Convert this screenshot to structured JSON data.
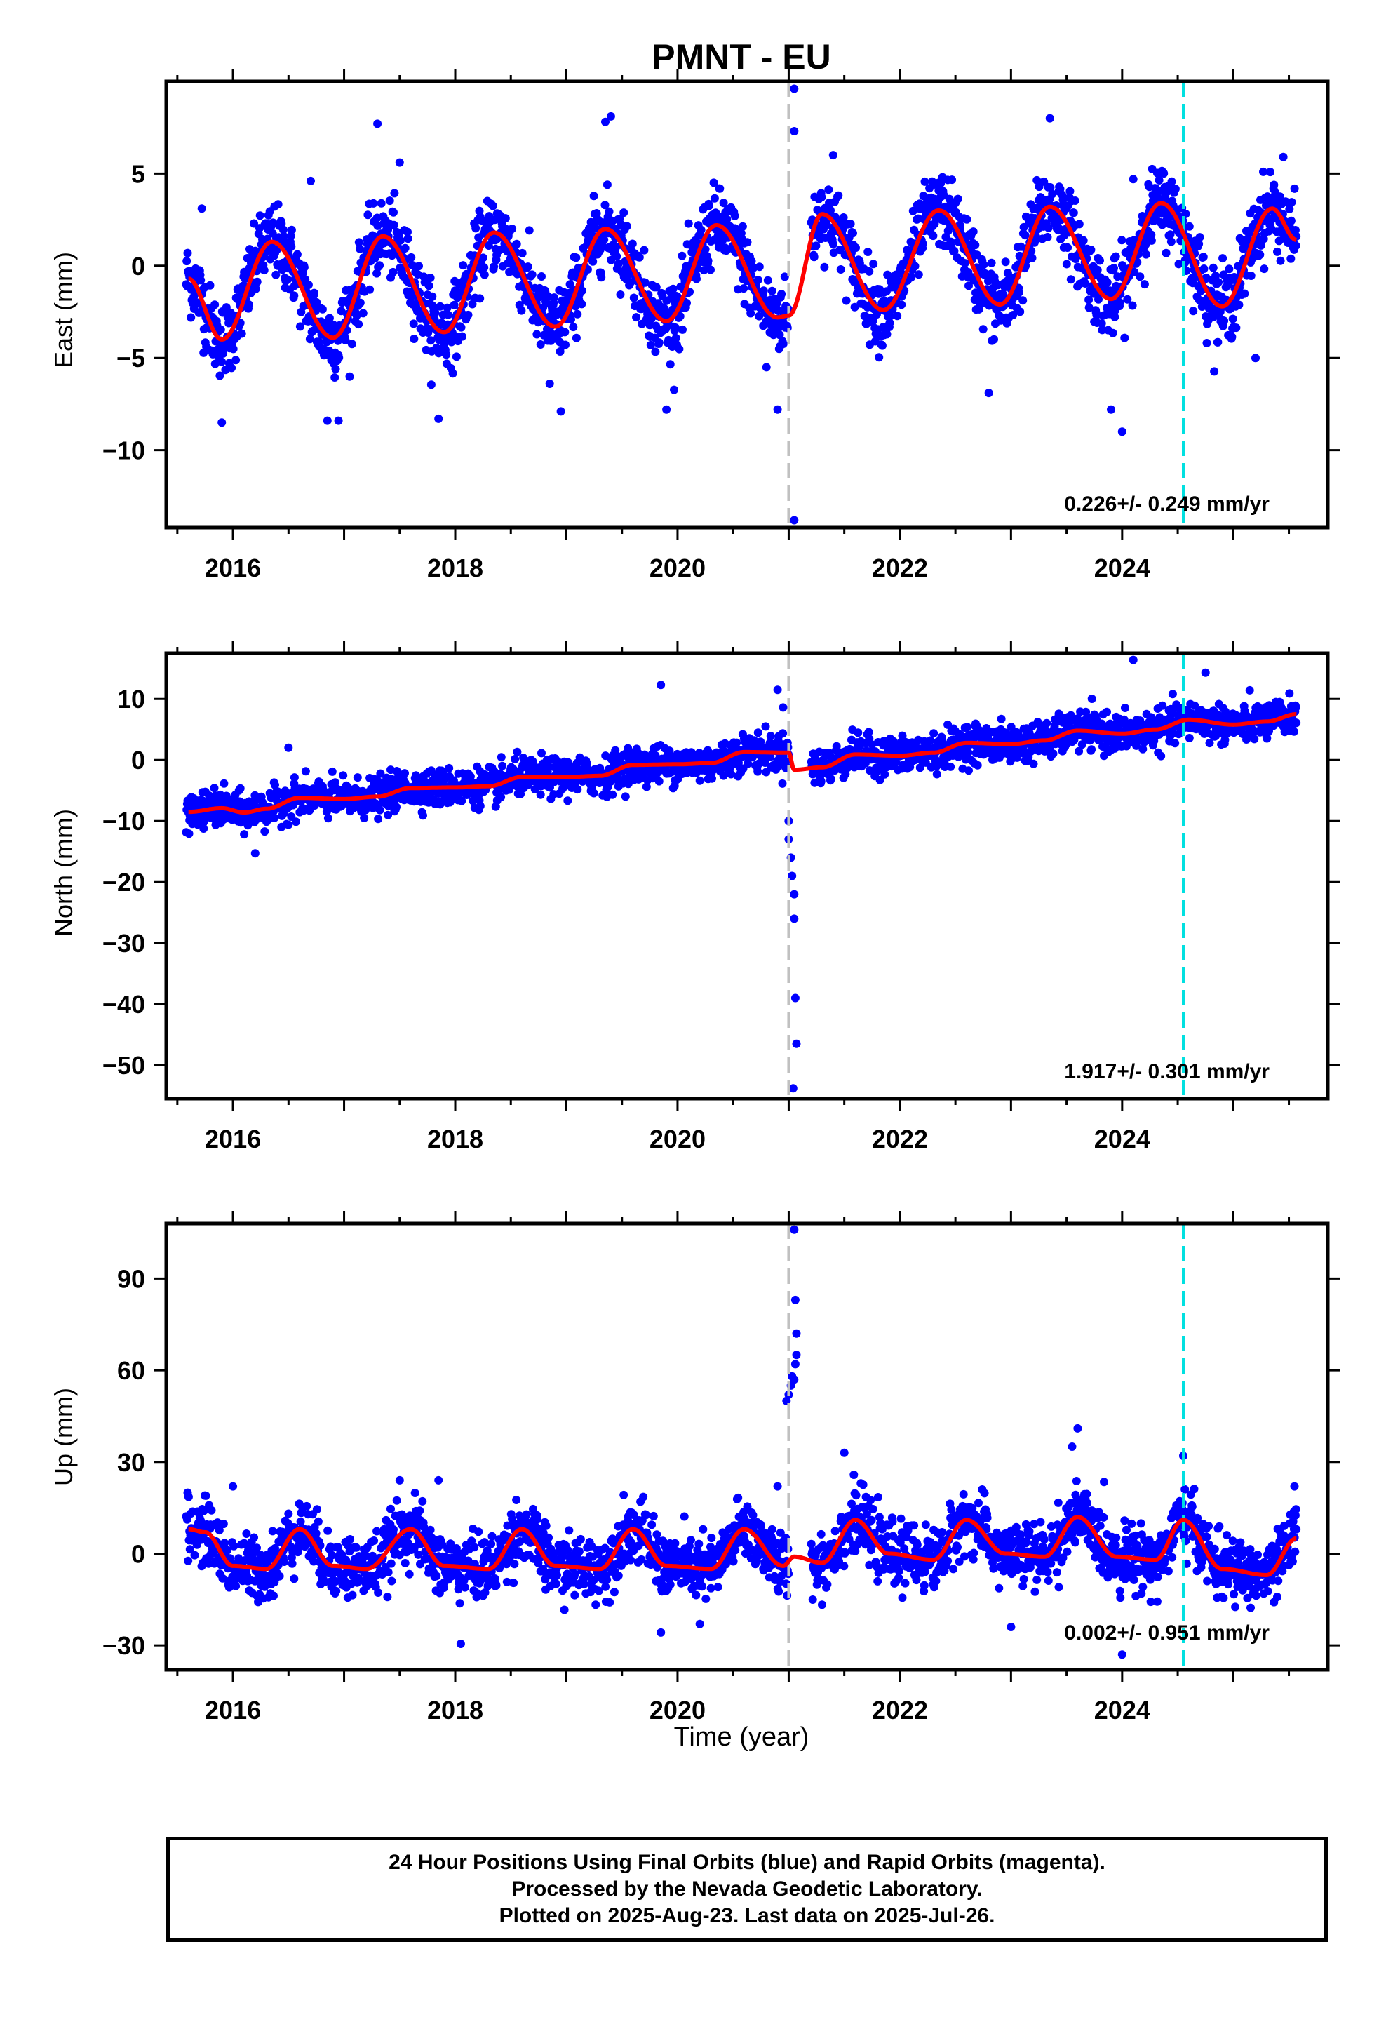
{
  "title": "PMNT - EU",
  "xlabel": "Time (year)",
  "caption": {
    "line1": "24 Hour Positions Using Final Orbits (blue) and Rapid Orbits (magenta).",
    "line2": "Processed by the Nevada Geodetic Laboratory.",
    "line3": "Plotted on 2025-Aug-23. Last data on 2025-Jul-26."
  },
  "colors": {
    "final_orbits": "#0000ff",
    "rapid_orbits": "#ff00ff",
    "model": "#ff0000",
    "equipment_change": "#c0c0c0",
    "antenna_change": "#00e0e0"
  },
  "chart_data": [
    {
      "type": "scatter",
      "name": "East",
      "ylabel": "East (mm)",
      "xlim": [
        2015.4,
        2025.85
      ],
      "ylim": [
        -14.2,
        10
      ],
      "xticks": [
        2016,
        2018,
        2020,
        2022,
        2024
      ],
      "yticks": [
        5,
        0,
        -5,
        -10
      ],
      "yticklabels": [
        "5",
        "0",
        "−5",
        "−10"
      ],
      "rate": "0.226+/- 0.249 mm/yr",
      "vlines": [
        {
          "x": 2021.0,
          "color": "gray"
        },
        {
          "x": 2024.55,
          "color": "cyan"
        }
      ],
      "model": {
        "x": [
          2015.6,
          2015.9,
          2016.35,
          2016.9,
          2017.35,
          2017.9,
          2018.35,
          2018.9,
          2019.35,
          2019.9,
          2020.35,
          2020.9,
          2021.0,
          2021.3,
          2021.85,
          2022.35,
          2022.9,
          2023.35,
          2023.9,
          2024.35,
          2024.9,
          2025.35,
          2025.57
        ],
        "y": [
          -0.7,
          -4.0,
          1.3,
          -3.9,
          1.6,
          -3.6,
          1.8,
          -3.3,
          2.0,
          -3.0,
          2.2,
          -2.8,
          -2.7,
          2.8,
          -2.4,
          3.0,
          -2.1,
          3.2,
          -1.8,
          3.4,
          -2.2,
          3.1,
          1.4
        ]
      },
      "outliers": [
        [
          2015.72,
          3.1
        ],
        [
          2015.9,
          -8.5
        ],
        [
          2016.7,
          4.6
        ],
        [
          2016.85,
          -8.4
        ],
        [
          2016.95,
          -8.4
        ],
        [
          2017.3,
          7.7
        ],
        [
          2017.5,
          5.6
        ],
        [
          2017.85,
          -8.3
        ],
        [
          2018.85,
          -6.4
        ],
        [
          2018.95,
          -7.9
        ],
        [
          2019.35,
          7.8
        ],
        [
          2019.4,
          8.1
        ],
        [
          2019.9,
          -7.8
        ],
        [
          2020.8,
          -5.5
        ],
        [
          2020.9,
          -7.8
        ],
        [
          2021.05,
          9.6
        ],
        [
          2021.05,
          7.3
        ],
        [
          2021.05,
          -13.8
        ],
        [
          2021.4,
          6.0
        ],
        [
          2022.8,
          -6.9
        ],
        [
          2023.35,
          8.0
        ],
        [
          2023.9,
          -7.8
        ],
        [
          2024.0,
          -9.0
        ],
        [
          2024.1,
          4.7
        ],
        [
          2025.2,
          -5.0
        ],
        [
          2025.45,
          5.9
        ]
      ],
      "scatter_sigma": 1.0
    },
    {
      "type": "scatter",
      "name": "North",
      "ylabel": "North (mm)",
      "xlim": [
        2015.4,
        2025.85
      ],
      "ylim": [
        -55.5,
        17.5
      ],
      "xticks": [
        2016,
        2018,
        2020,
        2022,
        2024
      ],
      "yticks": [
        10,
        0,
        -10,
        -20,
        -30,
        -40,
        -50
      ],
      "yticklabels": [
        "10",
        "0",
        "−10",
        "−20",
        "−30",
        "−40",
        "−50"
      ],
      "rate": "1.917+/- 0.301 mm/yr",
      "vlines": [
        {
          "x": 2021.0,
          "color": "gray"
        },
        {
          "x": 2024.55,
          "color": "cyan"
        }
      ],
      "model": {
        "x": [
          2015.6,
          2015.9,
          2016.1,
          2016.3,
          2016.6,
          2017.0,
          2017.3,
          2017.6,
          2018.0,
          2018.3,
          2018.6,
          2019.0,
          2019.3,
          2019.6,
          2020.0,
          2020.3,
          2020.6,
          2021.0,
          2021.05,
          2021.3,
          2021.6,
          2022.0,
          2022.3,
          2022.6,
          2023.0,
          2023.3,
          2023.6,
          2024.0,
          2024.3,
          2024.6,
          2025.0,
          2025.3,
          2025.57
        ],
        "y": [
          -8.5,
          -7.9,
          -8.6,
          -8.0,
          -6.2,
          -6.4,
          -6.0,
          -4.6,
          -4.5,
          -4.3,
          -2.8,
          -2.8,
          -2.6,
          -0.8,
          -0.7,
          -0.5,
          1.3,
          1.2,
          -1.6,
          -1.2,
          0.9,
          0.7,
          1.2,
          2.8,
          2.6,
          3.2,
          4.8,
          4.3,
          5.0,
          6.6,
          5.8,
          6.3,
          7.5
        ]
      },
      "outliers": [
        [
          2016.2,
          -15.3
        ],
        [
          2016.5,
          2.0
        ],
        [
          2019.85,
          12.3
        ],
        [
          2020.9,
          11.5
        ],
        [
          2020.95,
          8.6
        ],
        [
          2021.0,
          -10.0
        ],
        [
          2021.0,
          -13.0
        ],
        [
          2021.02,
          -16.0
        ],
        [
          2021.03,
          -19.0
        ],
        [
          2021.05,
          -22.0
        ],
        [
          2021.05,
          -26.0
        ],
        [
          2021.06,
          -39.0
        ],
        [
          2021.07,
          -46.5
        ],
        [
          2021.04,
          -53.8
        ],
        [
          2024.1,
          16.4
        ],
        [
          2024.75,
          14.3
        ]
      ],
      "scatter_sigma": 1.5
    },
    {
      "type": "scatter",
      "name": "Up",
      "ylabel": "Up (mm)",
      "xlim": [
        2015.4,
        2025.85
      ],
      "ylim": [
        -38,
        108
      ],
      "xticks": [
        2016,
        2018,
        2020,
        2022,
        2024
      ],
      "yticks": [
        90,
        60,
        30,
        0,
        -30
      ],
      "yticklabels": [
        "90",
        "60",
        "30",
        "0",
        "−30"
      ],
      "rate": "0.002+/- 0.951 mm/yr",
      "vlines": [
        {
          "x": 2021.0,
          "color": "gray"
        },
        {
          "x": 2024.55,
          "color": "cyan"
        }
      ],
      "model": {
        "x": [
          2015.6,
          2015.75,
          2016.0,
          2016.3,
          2016.6,
          2016.9,
          2017.2,
          2017.6,
          2017.9,
          2018.3,
          2018.6,
          2018.9,
          2019.3,
          2019.6,
          2019.9,
          2020.3,
          2020.6,
          2020.95,
          2021.05,
          2021.3,
          2021.6,
          2021.9,
          2022.3,
          2022.6,
          2022.95,
          2023.3,
          2023.6,
          2023.95,
          2024.3,
          2024.55,
          2024.9,
          2025.3,
          2025.57
        ],
        "y": [
          8,
          7,
          -4,
          -5,
          8,
          -4,
          -5,
          8,
          -4,
          -5,
          8,
          -4,
          -5,
          8,
          -4,
          -5,
          8,
          -4,
          -1,
          -3,
          11,
          0,
          -2,
          11,
          0,
          -1,
          12,
          -1,
          -2,
          11,
          -5,
          -7,
          5
        ]
      },
      "outliers": [
        [
          2016.0,
          22.0
        ],
        [
          2017.5,
          24.0
        ],
        [
          2017.85,
          24.0
        ],
        [
          2018.05,
          -29.5
        ],
        [
          2019.85,
          -25.8
        ],
        [
          2020.2,
          -23.0
        ],
        [
          2020.9,
          22.0
        ],
        [
          2020.98,
          50.0
        ],
        [
          2021.0,
          52.0
        ],
        [
          2021.02,
          55.0
        ],
        [
          2021.03,
          58.0
        ],
        [
          2021.05,
          57.0
        ],
        [
          2021.06,
          62.0
        ],
        [
          2021.07,
          65.0
        ],
        [
          2021.07,
          72.0
        ],
        [
          2021.06,
          83.0
        ],
        [
          2021.05,
          106.0
        ],
        [
          2021.5,
          33.0
        ],
        [
          2023.0,
          -24.0
        ],
        [
          2023.6,
          41.0
        ],
        [
          2023.55,
          35.0
        ],
        [
          2024.0,
          -33.0
        ],
        [
          2024.55,
          32.0
        ],
        [
          2025.55,
          22.0
        ]
      ],
      "scatter_sigma": 5.0
    }
  ]
}
